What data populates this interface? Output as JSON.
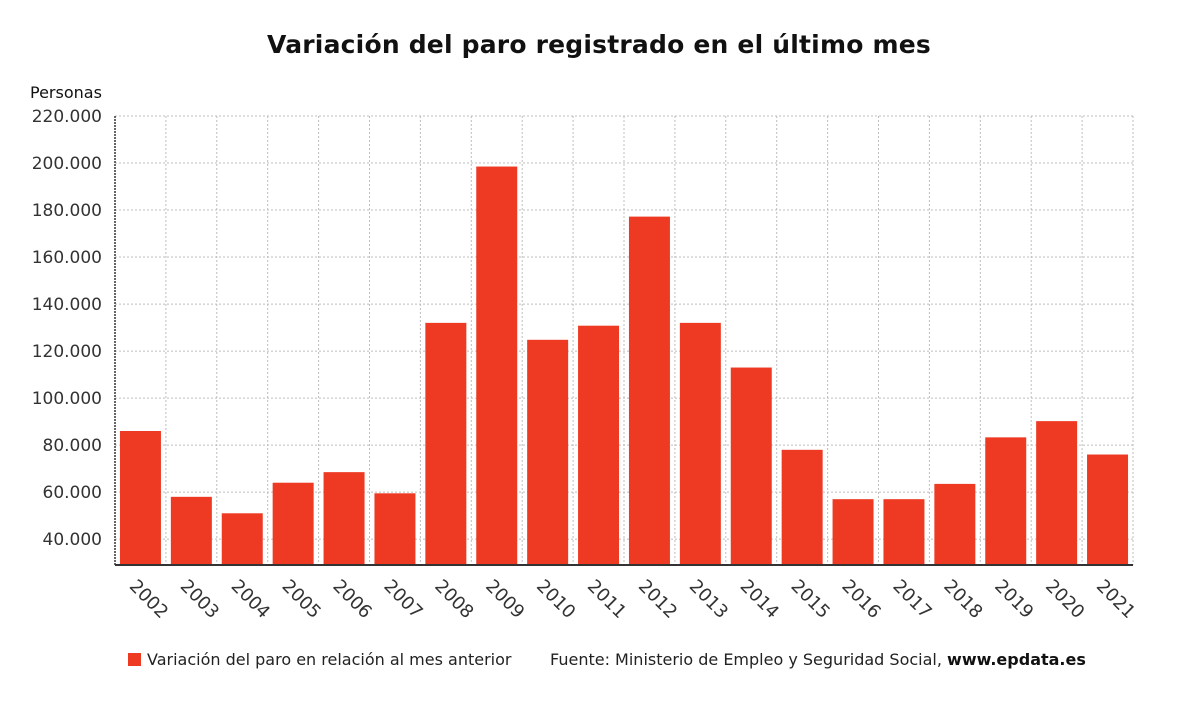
{
  "title": "Variación del paro registrado en el último mes",
  "unit_label": "Personas",
  "legend_label": "Variación del paro en relación al mes anterior",
  "source_text": "Fuente: Ministerio de Empleo y Seguridad Social, ",
  "source_site": "www.epdata.es",
  "colors": {
    "bar": "#ee3a23",
    "grid": "#bdbdbd",
    "axis": "#333333"
  },
  "chart_data": {
    "type": "bar",
    "title": "Variación del paro registrado en el último mes",
    "ylabel": "Personas",
    "xlabel": "",
    "ylim": [
      29000,
      220000
    ],
    "yticks": [
      40000,
      60000,
      80000,
      100000,
      120000,
      140000,
      160000,
      180000,
      200000,
      220000
    ],
    "ytick_labels": [
      "40.000",
      "60.000",
      "80.000",
      "100.000",
      "120.000",
      "140.000",
      "160.000",
      "180.000",
      "200.000",
      "220.000"
    ],
    "grid": true,
    "legend_position": "bottom-left",
    "categories": [
      "2002",
      "2003",
      "2004",
      "2005",
      "2006",
      "2007",
      "2008",
      "2009",
      "2010",
      "2011",
      "2012",
      "2013",
      "2014",
      "2015",
      "2016",
      "2017",
      "2018",
      "2019",
      "2020",
      "2021"
    ],
    "series": [
      {
        "name": "Variación del paro en relación al mes anterior",
        "values": [
          86000,
          58000,
          51000,
          64000,
          68500,
          59500,
          132000,
          198500,
          124800,
          130800,
          177200,
          132000,
          113000,
          78000,
          57000,
          57000,
          63500,
          83300,
          90200,
          76000
        ]
      }
    ]
  }
}
